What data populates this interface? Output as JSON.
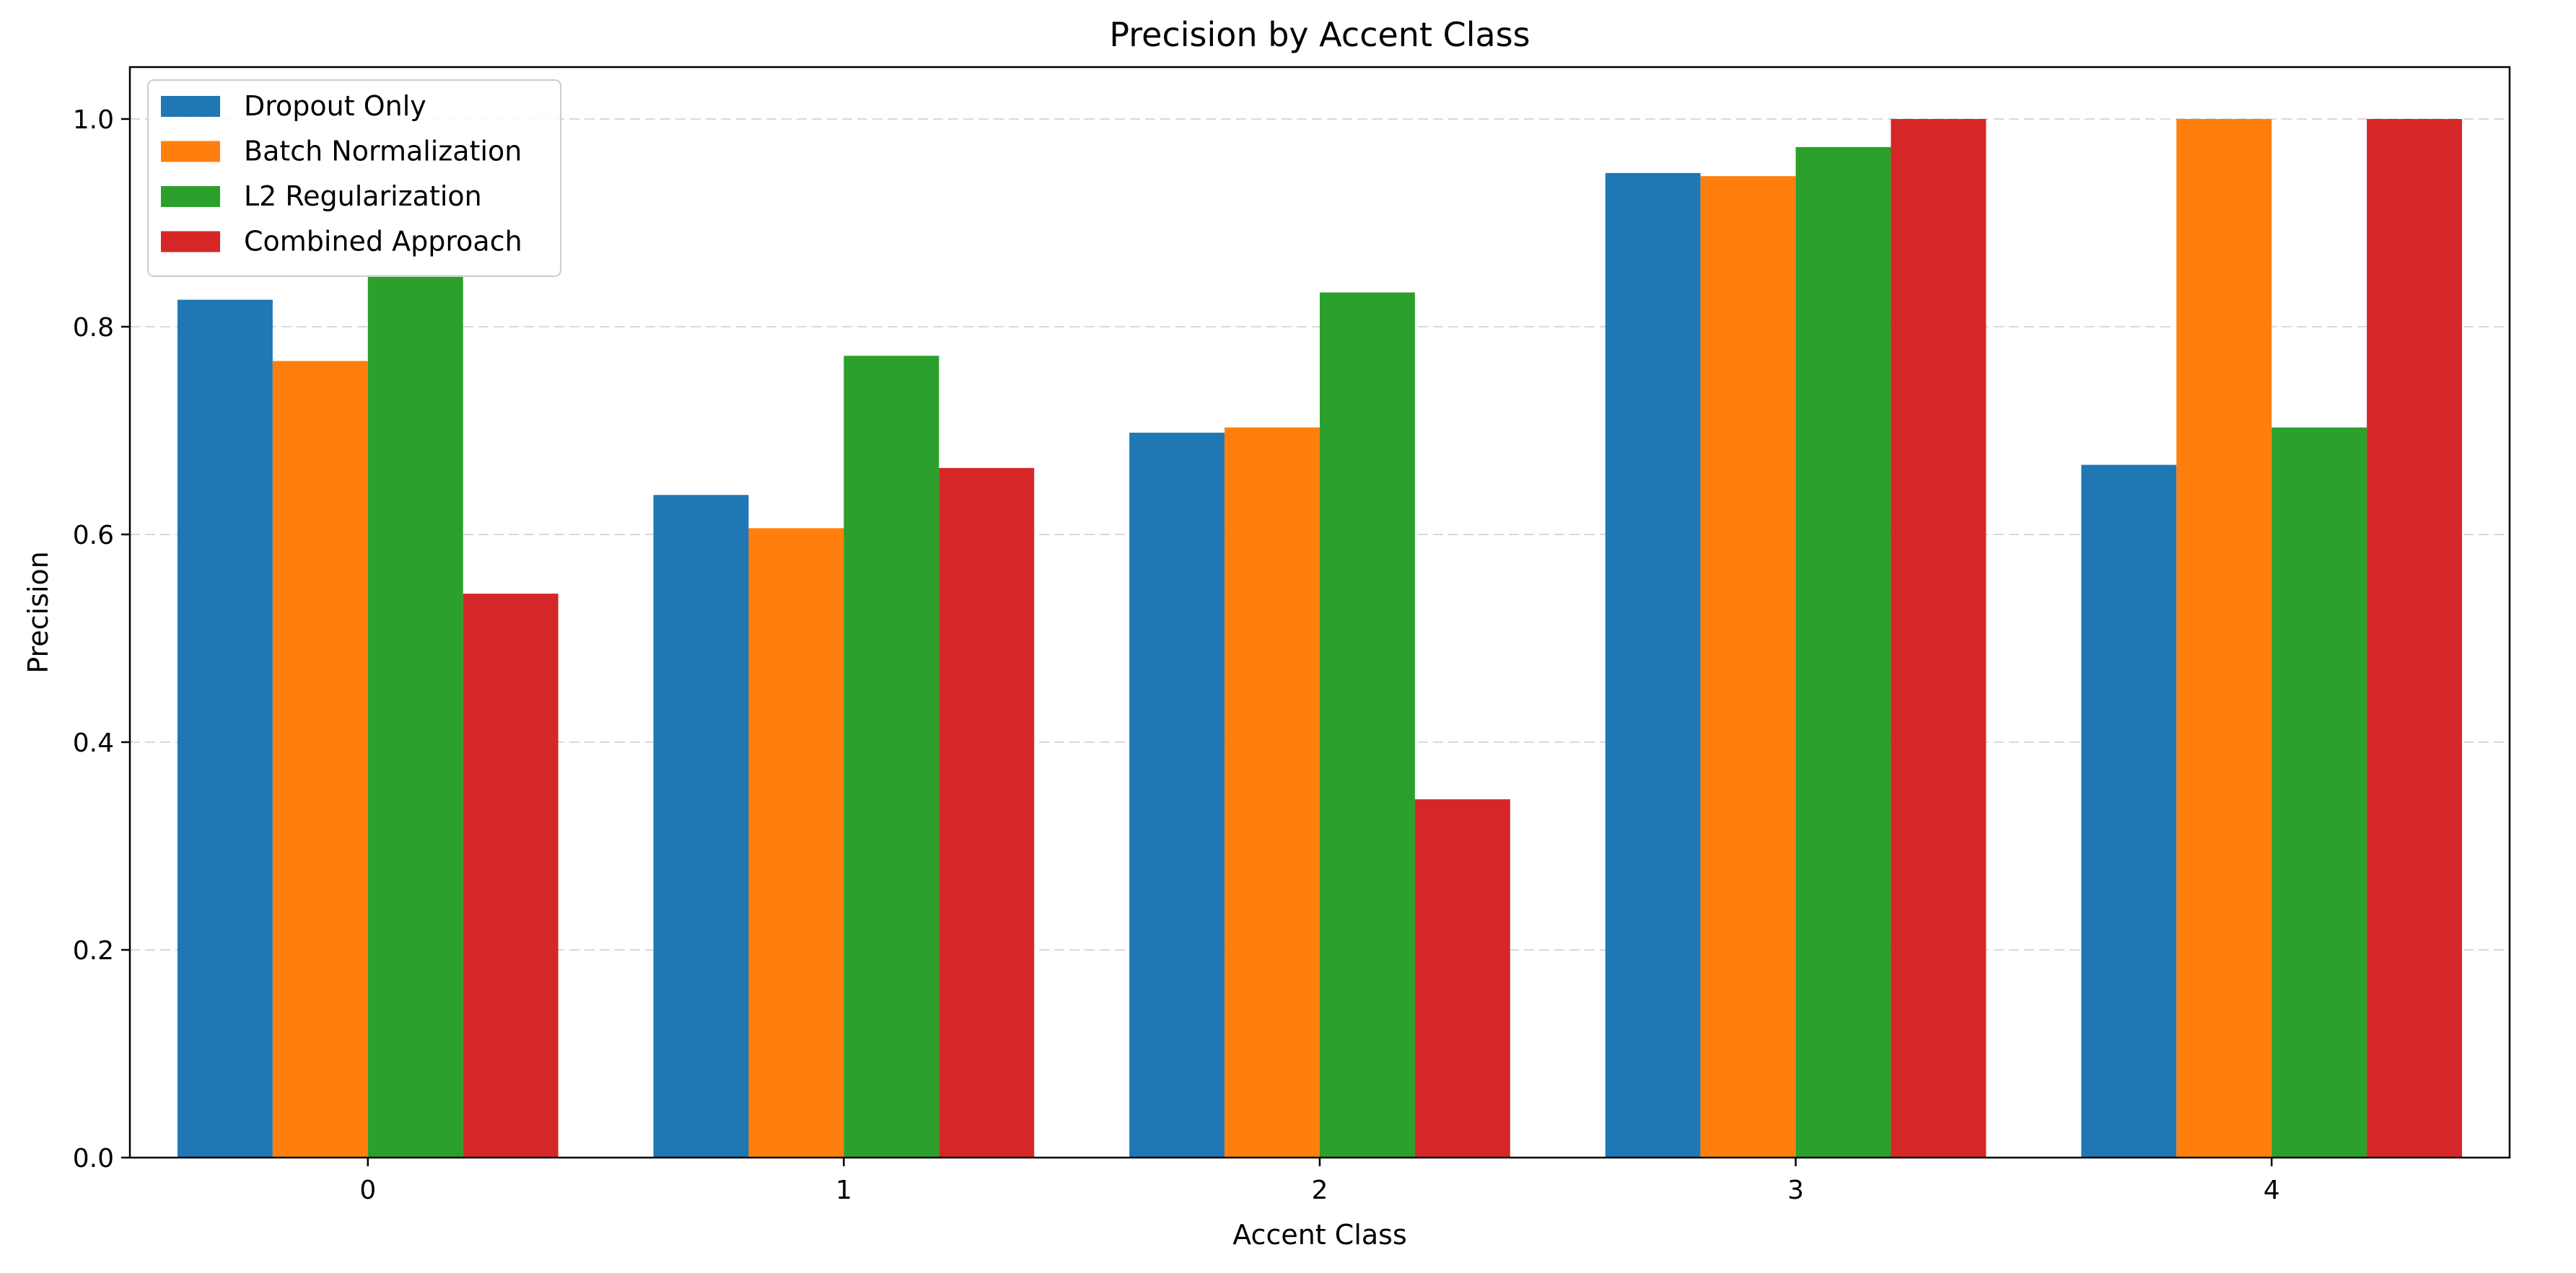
{
  "chart_data": {
    "type": "bar",
    "title": "Precision by Accent Class",
    "xlabel": "Accent Class",
    "ylabel": "Precision",
    "categories": [
      "0",
      "1",
      "2",
      "3",
      "4"
    ],
    "ylim": [
      0,
      1.05
    ],
    "yticks": [
      0.0,
      0.2,
      0.4,
      0.6,
      0.8,
      1.0
    ],
    "ytick_labels": [
      "0.0",
      "0.2",
      "0.4",
      "0.6",
      "0.8",
      "1.0"
    ],
    "grid": "y dashed",
    "legend_position": "top-left",
    "series": [
      {
        "name": "Dropout Only",
        "color": "#1f77b4",
        "values": [
          0.826,
          0.638,
          0.698,
          0.948,
          0.667
        ]
      },
      {
        "name": "Batch Normalization",
        "color": "#ff7f0e",
        "values": [
          0.767,
          0.606,
          0.703,
          0.945,
          1.0
        ]
      },
      {
        "name": "L2 Regularization",
        "color": "#2ca02c",
        "values": [
          0.85,
          0.772,
          0.833,
          0.973,
          0.703
        ]
      },
      {
        "name": "Combined Approach",
        "color": "#d62728",
        "values": [
          0.543,
          0.664,
          0.345,
          1.0,
          1.0
        ]
      }
    ]
  }
}
